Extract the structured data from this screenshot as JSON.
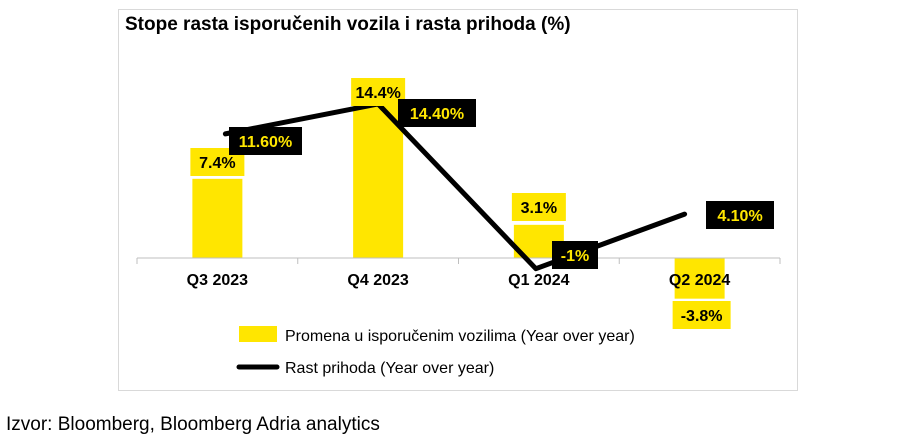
{
  "chart_data": {
    "type": "bar",
    "title": "Stope rasta isporučenih vozila i rasta prihoda (%)",
    "categories": [
      "Q3 2023",
      "Q4 2023",
      "Q1 2024",
      "Q2 2024"
    ],
    "series": [
      {
        "name": "Promena u isporučenim vozilima (Year over year)",
        "type": "bar",
        "values": [
          7.4,
          14.4,
          3.1,
          -3.8
        ],
        "labels": [
          "7.4%",
          "14.4%",
          "3.1%",
          "-3.8%"
        ]
      },
      {
        "name": "Rast prihoda (Year over year)",
        "type": "line",
        "values": [
          11.6,
          14.4,
          -1,
          4.1
        ],
        "labels": [
          "11.60%",
          "14.40%",
          "-1%",
          "4.10%"
        ]
      }
    ],
    "ylim": [
      -4,
      16
    ],
    "grid": false,
    "legend": "bottom",
    "colors": {
      "bars": "#FFE600",
      "line": "#000000",
      "line_label_bg": "#000000",
      "line_label_text": "#FFE600"
    }
  },
  "source": "Izvor: Bloomberg, Bloomberg Adria analytics"
}
